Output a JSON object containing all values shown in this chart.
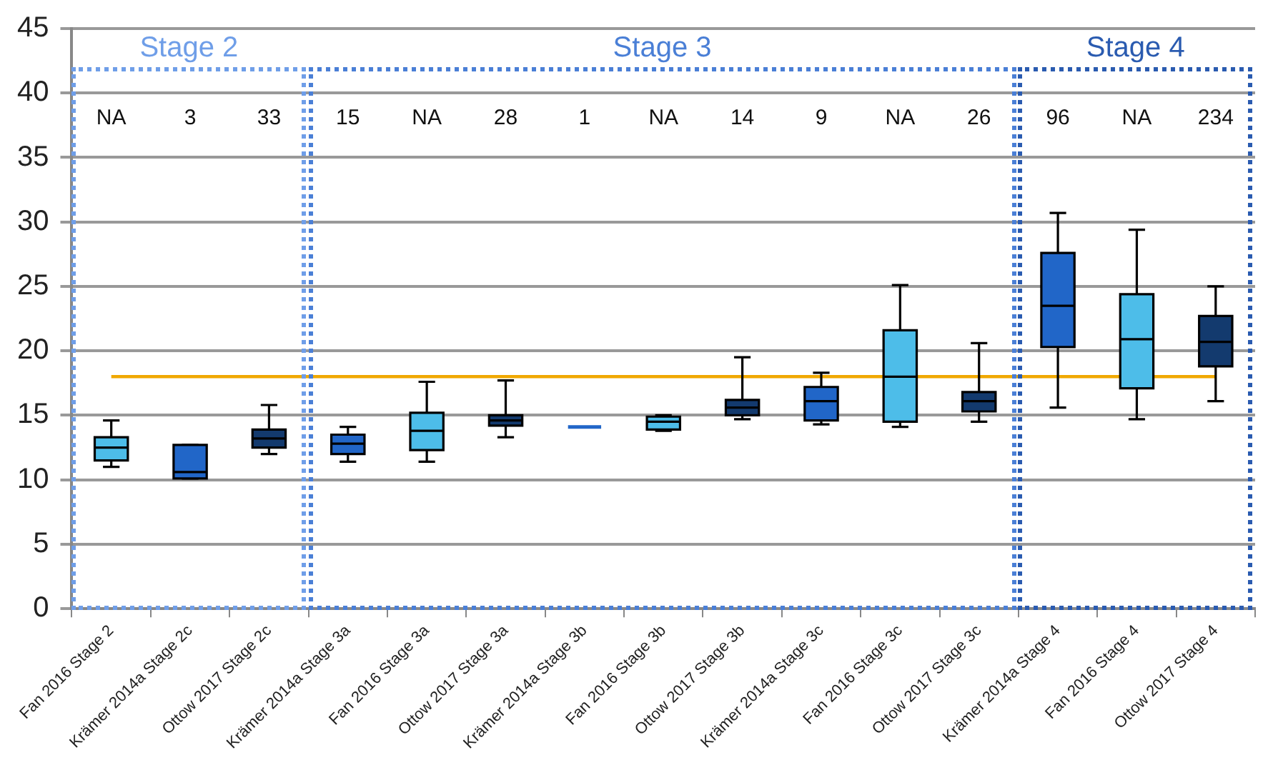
{
  "chart_data": {
    "type": "box",
    "categories": [
      "Fan 2016 Stage 2",
      "Krämer 2014a Stage 2c",
      "Ottow 2017 Stage 2c",
      "Krämer 2014a Stage 3a",
      "Fan 2016 Stage 3a",
      "Ottow 2017 Stage 3a",
      "Krämer 2014a Stage 3b",
      "Fan 2016 Stage 3b",
      "Ottow 2017 Stage 3b",
      "Krämer 2014a Stage 3c",
      "Fan 2016 Stage 3c",
      "Ottow 2017 Stage 3c",
      "Krämer 2014a Stage 4",
      "Fan 2016 Stage 4",
      "Ottow 2017 Stage 4"
    ],
    "boxes": [
      {
        "low": 11.0,
        "q1": 11.5,
        "median": 12.5,
        "q3": 13.3,
        "high": 14.6
      },
      {
        "low": 10.1,
        "q1": 10.1,
        "median": 10.6,
        "q3": 12.7,
        "high": 12.7
      },
      {
        "low": 12.0,
        "q1": 12.5,
        "median": 13.2,
        "q3": 13.9,
        "high": 15.8
      },
      {
        "low": 11.4,
        "q1": 12.0,
        "median": 12.8,
        "q3": 13.5,
        "high": 14.1
      },
      {
        "low": 11.4,
        "q1": 12.3,
        "median": 13.8,
        "q3": 15.2,
        "high": 17.6
      },
      {
        "low": 13.3,
        "q1": 14.2,
        "median": 14.6,
        "q3": 15.0,
        "high": 17.7
      },
      {
        "low": 14.1,
        "q1": 14.1,
        "median": 14.1,
        "q3": 14.1,
        "high": 14.1
      },
      {
        "low": 13.8,
        "q1": 13.9,
        "median": 14.5,
        "q3": 14.9,
        "high": 15.0
      },
      {
        "low": 14.7,
        "q1": 15.0,
        "median": 15.6,
        "q3": 16.2,
        "high": 19.5
      },
      {
        "low": 14.3,
        "q1": 14.6,
        "median": 16.1,
        "q3": 17.2,
        "high": 18.3
      },
      {
        "low": 14.1,
        "q1": 14.5,
        "median": 18.0,
        "q3": 21.6,
        "high": 25.1
      },
      {
        "low": 14.5,
        "q1": 15.3,
        "median": 16.1,
        "q3": 16.8,
        "high": 20.6
      },
      {
        "low": 15.6,
        "q1": 20.3,
        "median": 23.5,
        "q3": 27.6,
        "high": 30.7
      },
      {
        "low": 14.7,
        "q1": 17.1,
        "median": 20.9,
        "q3": 24.4,
        "high": 29.4
      },
      {
        "low": 16.1,
        "q1": 18.8,
        "median": 20.7,
        "q3": 22.7,
        "high": 25.0
      }
    ],
    "colors": [
      "#4dbde9",
      "#2166c8",
      "#133a6e",
      "#2166c8",
      "#4dbde9",
      "#133a6e",
      "#2166c8",
      "#4dbde9",
      "#133a6e",
      "#2166c8",
      "#4dbde9",
      "#133a6e",
      "#2166c8",
      "#4dbde9",
      "#133a6e"
    ],
    "ylim": [
      0,
      45
    ],
    "yticks": [
      0,
      5,
      10,
      15,
      20,
      25,
      30,
      35,
      40,
      45
    ],
    "grid": "y",
    "ref_lines": [
      {
        "axis": "y",
        "value": 18,
        "color": "#f0a800"
      }
    ],
    "annotations": [
      "Stage 2",
      "Stage 3",
      "Stage 4",
      "NA",
      "3",
      "33",
      "15",
      "NA",
      "28",
      "1",
      "NA",
      "14",
      "9",
      "NA",
      "26",
      "96",
      "NA",
      "234"
    ]
  }
}
